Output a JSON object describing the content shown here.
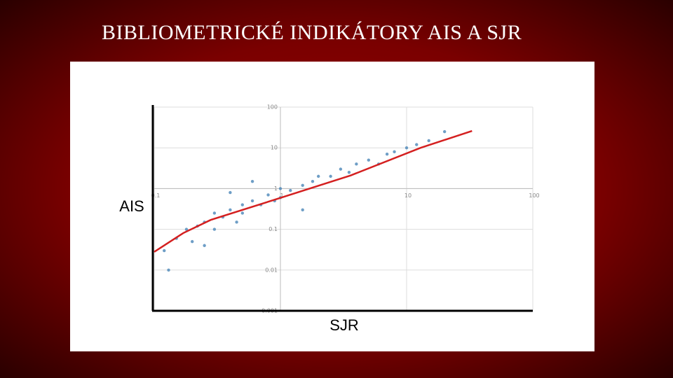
{
  "title": "BIBLIOMETRICKÉ INDIKÁTORY AIS A SJR",
  "chart_data": {
    "type": "scatter",
    "x_label": "SJR",
    "y_label": "AIS",
    "log_x": true,
    "log_y": true,
    "grid": true,
    "xlim": [
      0.1,
      100
    ],
    "ylim": [
      0.001,
      100
    ],
    "xticks": [
      0.1,
      1,
      10,
      100
    ],
    "yticks": [
      0.001,
      0.01,
      0.1,
      1,
      10,
      100
    ],
    "color": "#4a86b8",
    "x": [
      0.12,
      0.15,
      0.18,
      0.2,
      0.22,
      0.25,
      0.3,
      0.3,
      0.35,
      0.4,
      0.45,
      0.5,
      0.5,
      0.6,
      0.7,
      0.8,
      0.9,
      1,
      1,
      1.2,
      1.5,
      1.8,
      2,
      2.5,
      3,
      3.5,
      4,
      5,
      6,
      7,
      8,
      10,
      12,
      15,
      20,
      0.13,
      0.25,
      0.6,
      1.5,
      0.4
    ],
    "y": [
      0.03,
      0.06,
      0.1,
      0.05,
      0.12,
      0.15,
      0.1,
      0.25,
      0.2,
      0.3,
      0.15,
      0.4,
      0.25,
      0.5,
      0.4,
      0.7,
      0.5,
      0.6,
      1,
      0.9,
      1.2,
      1.5,
      2,
      2,
      3,
      2.5,
      4,
      5,
      4,
      7,
      8,
      10,
      12,
      15,
      25,
      0.01,
      0.04,
      1.5,
      0.3,
      0.8
    ],
    "trend_line": {
      "color": "#d42020",
      "x": [
        0.1,
        0.17,
        0.28,
        1,
        3.6,
        12.9,
        33
      ],
      "y": [
        0.028,
        0.081,
        0.17,
        0.59,
        2.1,
        10,
        26
      ]
    }
  }
}
